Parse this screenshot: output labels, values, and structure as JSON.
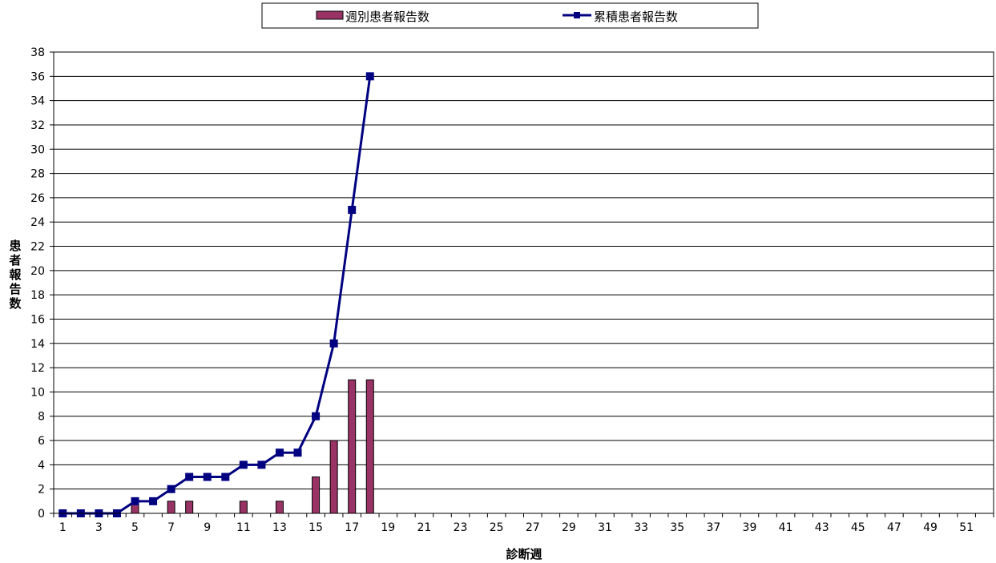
{
  "chart_data": {
    "type": "bar",
    "x": [
      1,
      2,
      3,
      4,
      5,
      6,
      7,
      8,
      9,
      10,
      11,
      12,
      13,
      14,
      15,
      16,
      17,
      18,
      19,
      20,
      21,
      22,
      23,
      24,
      25,
      26,
      27,
      28,
      29,
      30,
      31,
      32,
      33,
      34,
      35,
      36,
      37,
      38,
      39,
      40,
      41,
      42,
      43,
      44,
      45,
      46,
      47,
      48,
      49,
      50,
      51,
      52
    ],
    "x_tick_labels": [
      "1",
      "3",
      "5",
      "7",
      "9",
      "11",
      "13",
      "15",
      "17",
      "19",
      "21",
      "23",
      "25",
      "27",
      "29",
      "31",
      "33",
      "35",
      "37",
      "39",
      "41",
      "43",
      "45",
      "47",
      "49",
      "51"
    ],
    "xlabel": "診断週",
    "ylabel": "患者報告数",
    "ylim": [
      0,
      38
    ],
    "y_ticks": [
      0,
      2,
      4,
      6,
      8,
      10,
      12,
      14,
      16,
      18,
      20,
      22,
      24,
      26,
      28,
      30,
      32,
      34,
      36,
      38
    ],
    "grid": true,
    "legend_position": "top",
    "series": [
      {
        "name": "週別患者報告数",
        "type": "bar",
        "color": "#993366",
        "x": [
          1,
          2,
          3,
          4,
          5,
          6,
          7,
          8,
          9,
          10,
          11,
          12,
          13,
          14,
          15,
          16,
          17,
          18
        ],
        "values": [
          0,
          0,
          0,
          0,
          1,
          0,
          1,
          1,
          0,
          0,
          1,
          0,
          1,
          0,
          3,
          6,
          11,
          11
        ]
      },
      {
        "name": "累積患者報告数",
        "type": "line",
        "marker": "square",
        "color": "#000080",
        "x": [
          1,
          2,
          3,
          4,
          5,
          6,
          7,
          8,
          9,
          10,
          11,
          12,
          13,
          14,
          15,
          16,
          17,
          18
        ],
        "values": [
          0,
          0,
          0,
          0,
          1,
          1,
          2,
          3,
          3,
          3,
          4,
          4,
          5,
          5,
          8,
          14,
          25,
          36
        ]
      }
    ]
  }
}
